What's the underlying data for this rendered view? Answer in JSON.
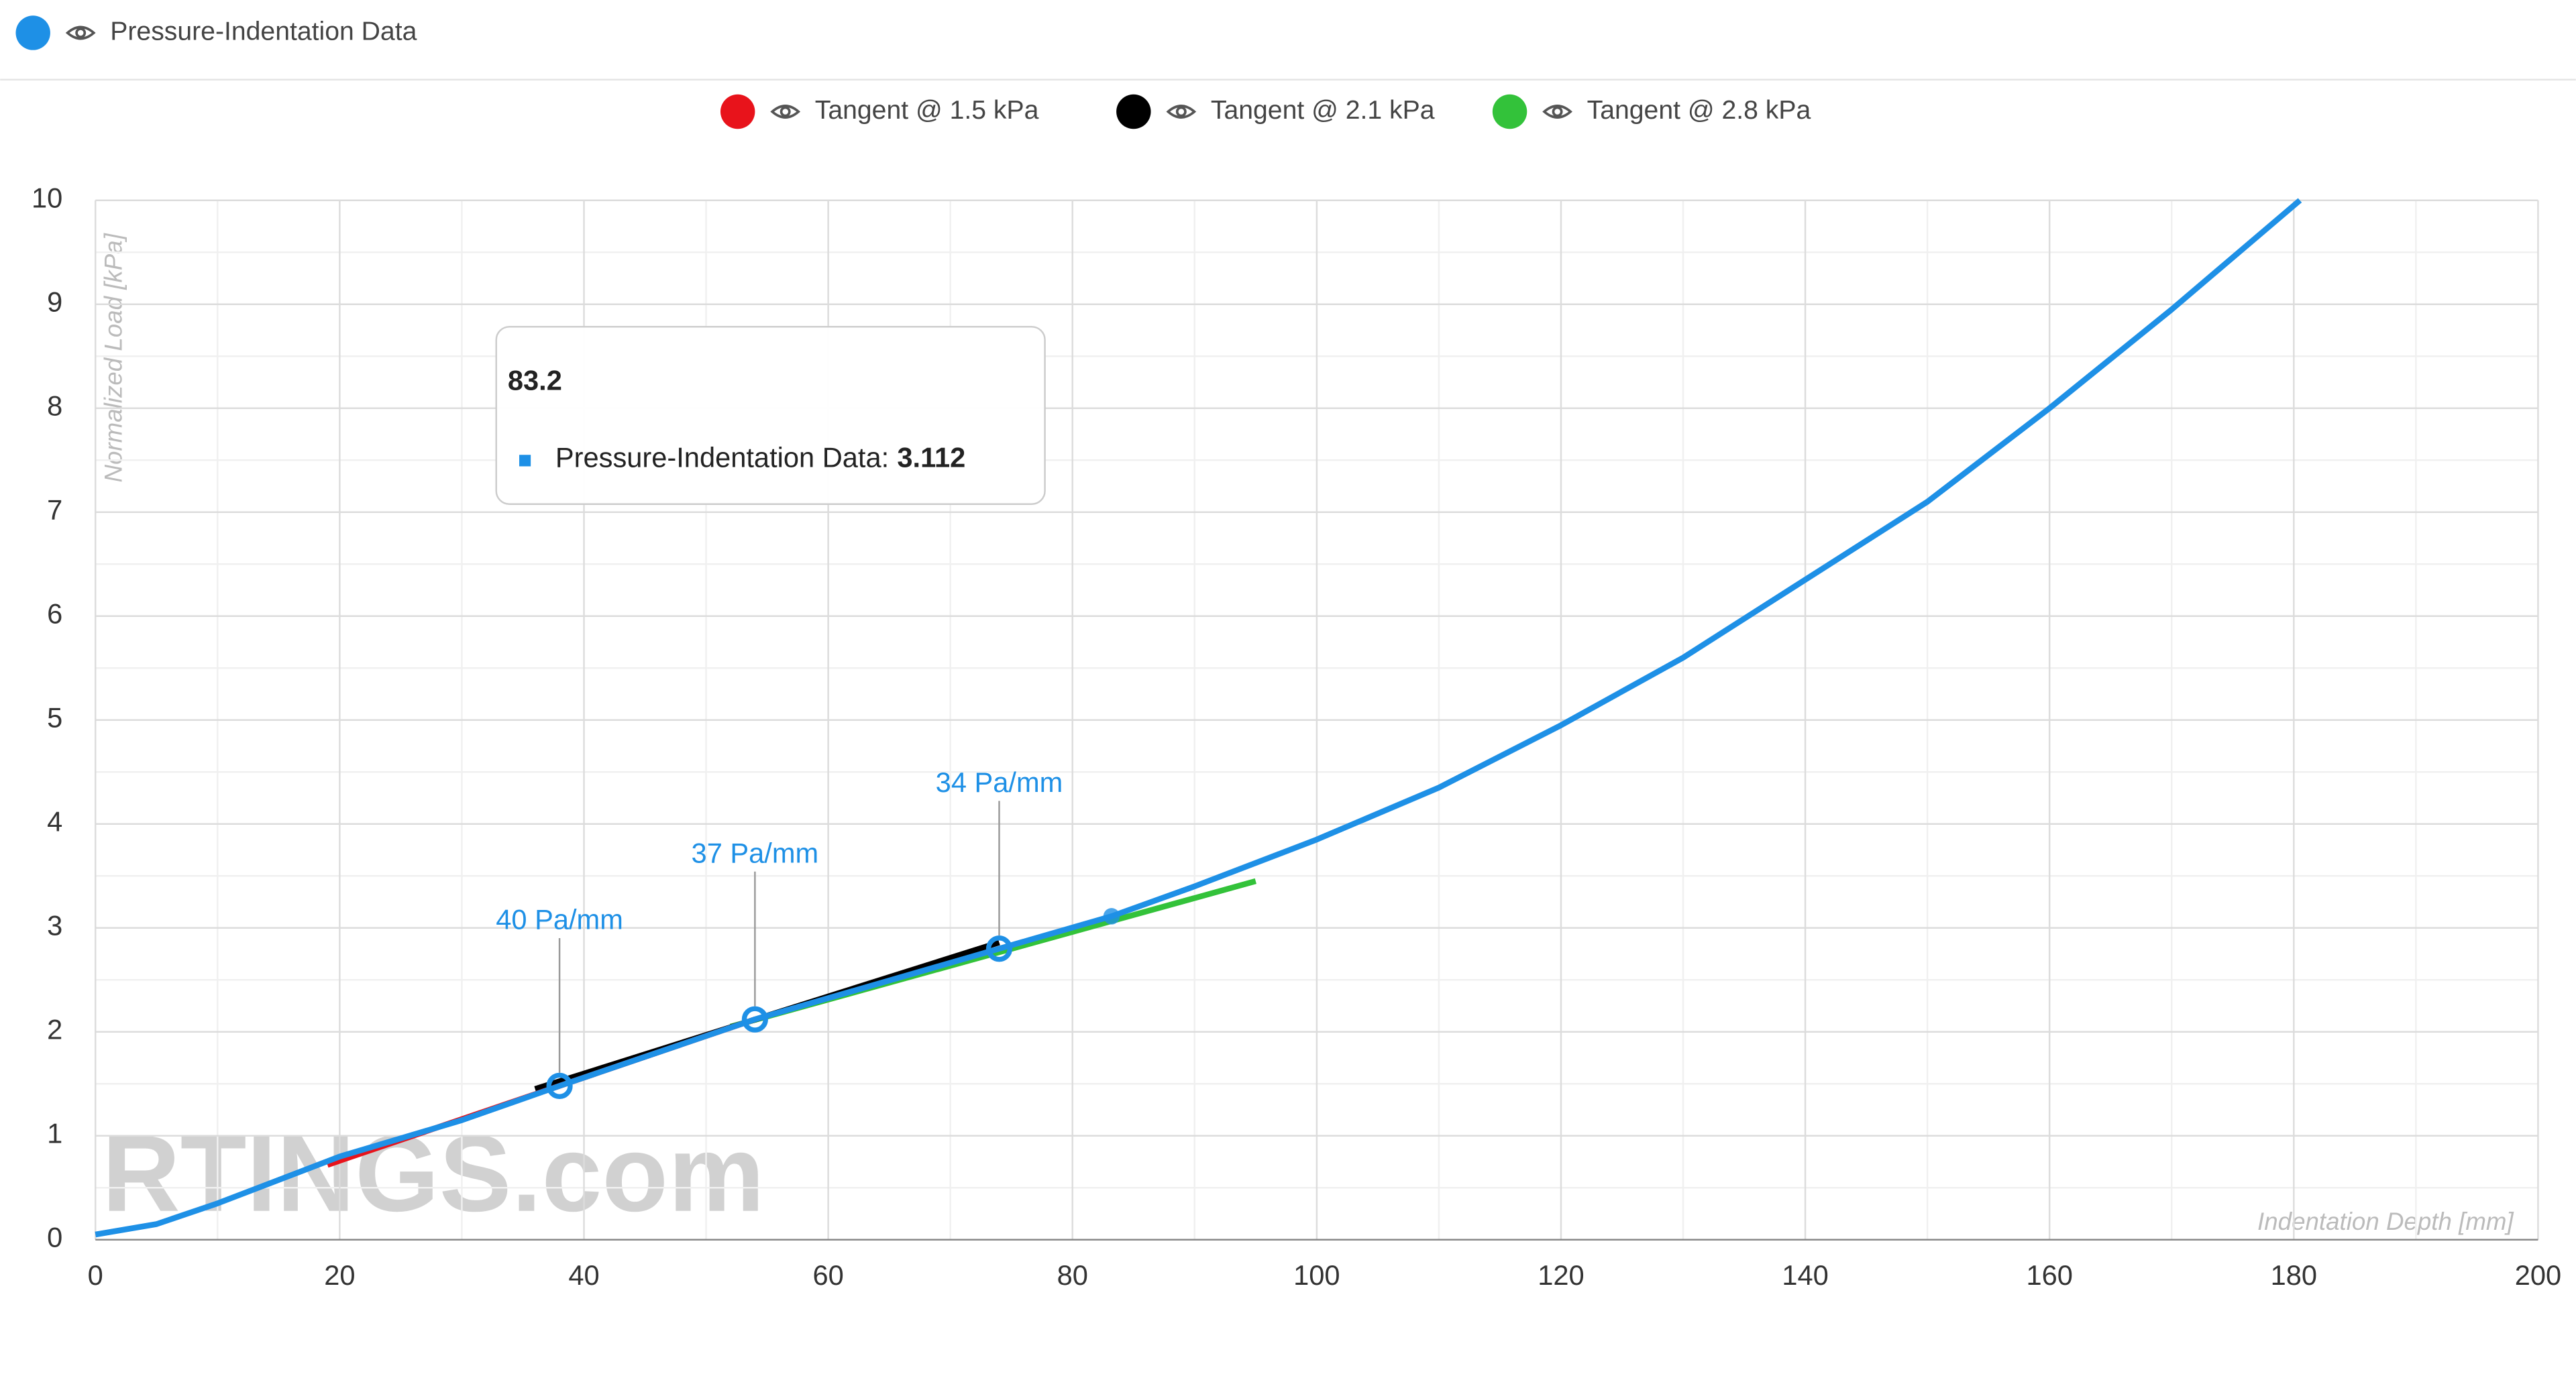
{
  "chart_data": {
    "type": "line",
    "series": [
      {
        "name": "Pressure-Indentation Data",
        "color": "#1e90e6",
        "x": [
          0,
          5,
          10,
          20,
          30,
          38,
          54,
          74,
          83.2,
          90,
          100,
          110,
          120,
          130,
          140,
          150,
          160,
          170,
          180.5
        ],
        "values": [
          0.05,
          0.15,
          0.35,
          0.8,
          1.15,
          1.48,
          2.12,
          2.8,
          3.112,
          3.4,
          3.85,
          4.35,
          4.95,
          5.6,
          6.35,
          7.1,
          8.0,
          8.95,
          10
        ]
      },
      {
        "name": "Tangent @ 1.5 kPa",
        "color": "#e8131b",
        "x": [
          19,
          54
        ],
        "values": [
          0.72,
          2.12
        ]
      },
      {
        "name": "Tangent @ 2.1 kPa",
        "color": "#000000",
        "x": [
          36,
          74
        ],
        "values": [
          1.45,
          2.86
        ]
      },
      {
        "name": "Tangent @ 2.8 kPa",
        "color": "#33c23a",
        "x": [
          52,
          95
        ],
        "values": [
          2.05,
          3.45
        ]
      }
    ],
    "annotations": [
      {
        "text": "40 Pa/mm",
        "x": 38,
        "y": 1.48
      },
      {
        "text": "37 Pa/mm",
        "x": 54,
        "y": 2.12
      },
      {
        "text": "34 Pa/mm",
        "x": 74,
        "y": 2.8
      }
    ],
    "tooltip": {
      "x": 83.2,
      "series": "Pressure-Indentation Data:",
      "value": 3.112
    },
    "xlabel": "Indentation Depth [mm]",
    "ylabel": "Normalized Load [kPa]",
    "watermark": "RTINGS.com",
    "xlim": [
      0,
      200
    ],
    "ylim": [
      0,
      10
    ],
    "xticks": [
      0,
      20,
      40,
      60,
      80,
      100,
      120,
      140,
      160,
      180,
      200
    ],
    "yticks": [
      0,
      1,
      2,
      3,
      4,
      5,
      6,
      7,
      8,
      9,
      10
    ],
    "minor_xticks": [
      10,
      30,
      50,
      70,
      90,
      110,
      130,
      150,
      170,
      190
    ],
    "minor_yticks": [
      0.5,
      1.5,
      2.5,
      3.5,
      4.5,
      5.5,
      6.5,
      7.5,
      8.5,
      9.5
    ],
    "grid": true
  }
}
